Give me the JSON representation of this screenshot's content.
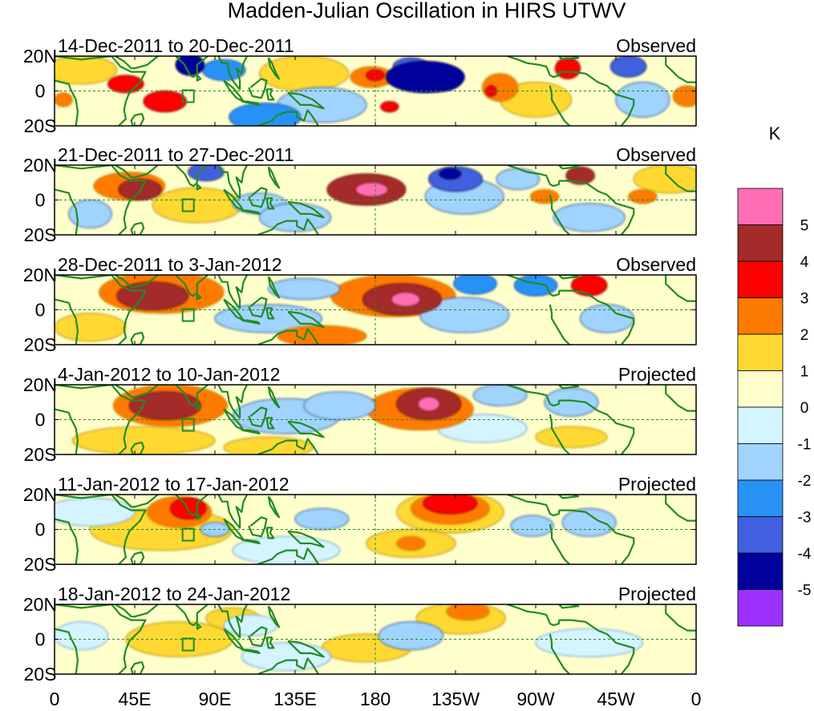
{
  "chart_data": {
    "type": "heatmap",
    "title": "Madden-Julian Oscillation in HIRS UTWV",
    "colorbar": {
      "unit": "K",
      "tick_labels": [
        "5",
        "4",
        "3",
        "2",
        "1",
        "0",
        "-1",
        "-2",
        "-3",
        "-4",
        "-5"
      ],
      "colors": [
        "#ff6eb4",
        "#a52a2a",
        "#ff0000",
        "#ff7a00",
        "#ffd933",
        "#ffffcc",
        "#d4f4ff",
        "#a0d4ff",
        "#2892f5",
        "#4060e0",
        "#00009b",
        "#9b30ff"
      ]
    },
    "x_ticks": [
      "0",
      "45E",
      "90E",
      "135E",
      "180",
      "135W",
      "90W",
      "45W",
      "0"
    ],
    "y_ticks": [
      "20N",
      "0",
      "20S"
    ],
    "panels": [
      {
        "period": "14-Dec-2011 to 20-Dec-2011",
        "kind": "Observed",
        "blobs": [
          {
            "lon": 208,
            "lat": 8,
            "value": -5,
            "rlon": 22,
            "rlat": 9
          },
          {
            "lon": 218,
            "lat": 6,
            "value": -4,
            "rlon": 10,
            "rlat": 6
          },
          {
            "lon": 200,
            "lat": 14,
            "value": -4,
            "rlon": 10,
            "rlat": 5
          },
          {
            "lon": 178,
            "lat": 8,
            "value": 2,
            "rlon": 12,
            "rlat": 6
          },
          {
            "lon": 180,
            "lat": 9,
            "value": 3,
            "rlon": 5,
            "rlat": 3
          },
          {
            "lon": 250,
            "lat": 2,
            "value": 2,
            "rlon": 10,
            "rlat": 8
          },
          {
            "lon": 245,
            "lat": 0,
            "value": 3,
            "rlon": 3,
            "rlat": 3
          },
          {
            "lon": 288,
            "lat": 13,
            "value": 3,
            "rlon": 7,
            "rlat": 6
          },
          {
            "lon": 322,
            "lat": 14,
            "value": -4,
            "rlon": 10,
            "rlat": 6
          },
          {
            "lon": 76,
            "lat": 15,
            "value": -5,
            "rlon": 8,
            "rlat": 6
          },
          {
            "lon": 95,
            "lat": 12,
            "value": -3,
            "rlon": 12,
            "rlat": 6
          },
          {
            "lon": 40,
            "lat": 4,
            "value": 3,
            "rlon": 10,
            "rlat": 5
          },
          {
            "lon": 62,
            "lat": -6,
            "value": 3,
            "rlon": 12,
            "rlat": 6
          },
          {
            "lon": 118,
            "lat": -15,
            "value": -3,
            "rlon": 20,
            "rlat": 8
          },
          {
            "lon": 150,
            "lat": -8,
            "value": -2,
            "rlon": 25,
            "rlat": 10
          },
          {
            "lon": 188,
            "lat": -9,
            "value": 3,
            "rlon": 5,
            "rlat": 3
          },
          {
            "lon": 270,
            "lat": -5,
            "value": 1,
            "rlon": 20,
            "rlat": 10
          },
          {
            "lon": 330,
            "lat": -5,
            "value": -2,
            "rlon": 15,
            "rlat": 10
          },
          {
            "lon": 355,
            "lat": -3,
            "value": 2,
            "rlon": 8,
            "rlat": 6
          },
          {
            "lon": 15,
            "lat": 12,
            "value": 1,
            "rlon": 20,
            "rlat": 8
          },
          {
            "lon": 140,
            "lat": 10,
            "value": 1,
            "rlon": 25,
            "rlat": 10
          },
          {
            "lon": 5,
            "lat": -5,
            "value": 2,
            "rlon": 5,
            "rlat": 4
          }
        ]
      },
      {
        "period": "21-Dec-2011 to 27-Dec-2011",
        "kind": "Observed",
        "blobs": [
          {
            "lon": 175,
            "lat": 6,
            "value": 4,
            "rlon": 22,
            "rlat": 9
          },
          {
            "lon": 178,
            "lat": 6,
            "value": 5,
            "rlon": 9,
            "rlat": 4
          },
          {
            "lon": 225,
            "lat": 12,
            "value": -4,
            "rlon": 15,
            "rlat": 7
          },
          {
            "lon": 222,
            "lat": 15,
            "value": -5,
            "rlon": 6,
            "rlat": 3
          },
          {
            "lon": 230,
            "lat": 2,
            "value": -2,
            "rlon": 22,
            "rlat": 10
          },
          {
            "lon": 48,
            "lat": 6,
            "value": 4,
            "rlon": 12,
            "rlat": 6
          },
          {
            "lon": 42,
            "lat": 8,
            "value": 2,
            "rlon": 20,
            "rlat": 8
          },
          {
            "lon": 85,
            "lat": 16,
            "value": -4,
            "rlon": 10,
            "rlat": 5
          },
          {
            "lon": 295,
            "lat": 14,
            "value": 4,
            "rlon": 8,
            "rlat": 5
          },
          {
            "lon": 275,
            "lat": 2,
            "value": 2,
            "rlon": 8,
            "rlat": 4
          },
          {
            "lon": 330,
            "lat": 2,
            "value": 2,
            "rlon": 8,
            "rlat": 4
          },
          {
            "lon": 115,
            "lat": -2,
            "value": -2,
            "rlon": 15,
            "rlat": 6
          },
          {
            "lon": 135,
            "lat": -10,
            "value": -2,
            "rlon": 20,
            "rlat": 8
          },
          {
            "lon": 80,
            "lat": -3,
            "value": 1,
            "rlon": 25,
            "rlat": 10
          },
          {
            "lon": 20,
            "lat": -8,
            "value": -2,
            "rlon": 12,
            "rlat": 8
          },
          {
            "lon": 300,
            "lat": -10,
            "value": -2,
            "rlon": 20,
            "rlat": 8
          },
          {
            "lon": 260,
            "lat": 12,
            "value": -2,
            "rlon": 12,
            "rlat": 6
          },
          {
            "lon": 345,
            "lat": 12,
            "value": 1,
            "rlon": 20,
            "rlat": 8
          }
        ]
      },
      {
        "period": "28-Dec-2011 to 3-Jan-2012",
        "kind": "Observed",
        "blobs": [
          {
            "lon": 195,
            "lat": 6,
            "value": 4,
            "rlon": 22,
            "rlat": 9
          },
          {
            "lon": 197,
            "lat": 6,
            "value": 5,
            "rlon": 8,
            "rlat": 4
          },
          {
            "lon": 190,
            "lat": 8,
            "value": 2,
            "rlon": 35,
            "rlat": 12
          },
          {
            "lon": 55,
            "lat": 8,
            "value": 4,
            "rlon": 20,
            "rlat": 8
          },
          {
            "lon": 60,
            "lat": 10,
            "value": 2,
            "rlon": 35,
            "rlat": 12
          },
          {
            "lon": 300,
            "lat": 14,
            "value": 3,
            "rlon": 10,
            "rlat": 6
          },
          {
            "lon": 236,
            "lat": 15,
            "value": -3,
            "rlon": 12,
            "rlat": 6
          },
          {
            "lon": 270,
            "lat": 14,
            "value": -3,
            "rlon": 12,
            "rlat": 6
          },
          {
            "lon": 230,
            "lat": -3,
            "value": -2,
            "rlon": 25,
            "rlat": 10
          },
          {
            "lon": 120,
            "lat": -5,
            "value": -2,
            "rlon": 30,
            "rlat": 8
          },
          {
            "lon": 150,
            "lat": -15,
            "value": 2,
            "rlon": 25,
            "rlat": 6
          },
          {
            "lon": 140,
            "lat": 12,
            "value": -2,
            "rlon": 20,
            "rlat": 6
          },
          {
            "lon": 20,
            "lat": -10,
            "value": 1,
            "rlon": 20,
            "rlat": 8
          },
          {
            "lon": 310,
            "lat": -5,
            "value": -2,
            "rlon": 15,
            "rlat": 8
          }
        ]
      },
      {
        "period": "4-Jan-2012 to 10-Jan-2012",
        "kind": "Projected",
        "blobs": [
          {
            "lon": 210,
            "lat": 9,
            "value": 4,
            "rlon": 18,
            "rlat": 9
          },
          {
            "lon": 210,
            "lat": 9,
            "value": 5,
            "rlon": 6,
            "rlat": 4
          },
          {
            "lon": 205,
            "lat": 6,
            "value": 2,
            "rlon": 30,
            "rlat": 12
          },
          {
            "lon": 62,
            "lat": 8,
            "value": 4,
            "rlon": 20,
            "rlat": 8
          },
          {
            "lon": 65,
            "lat": 8,
            "value": 2,
            "rlon": 32,
            "rlat": 12
          },
          {
            "lon": 50,
            "lat": -12,
            "value": 1,
            "rlon": 40,
            "rlat": 8
          },
          {
            "lon": 130,
            "lat": 2,
            "value": -2,
            "rlon": 30,
            "rlat": 10
          },
          {
            "lon": 160,
            "lat": 8,
            "value": -2,
            "rlon": 20,
            "rlat": 8
          },
          {
            "lon": 250,
            "lat": 14,
            "value": -2,
            "rlon": 15,
            "rlat": 6
          },
          {
            "lon": 290,
            "lat": 10,
            "value": -2,
            "rlon": 15,
            "rlat": 8
          },
          {
            "lon": 240,
            "lat": -5,
            "value": -1,
            "rlon": 25,
            "rlat": 8
          },
          {
            "lon": 120,
            "lat": -16,
            "value": 1,
            "rlon": 25,
            "rlat": 6
          },
          {
            "lon": 290,
            "lat": -10,
            "value": 1,
            "rlon": 20,
            "rlat": 6
          }
        ]
      },
      {
        "period": "11-Jan-2012 to 17-Jan-2012",
        "kind": "Projected",
        "blobs": [
          {
            "lon": 222,
            "lat": 15,
            "value": 3,
            "rlon": 15,
            "rlat": 6
          },
          {
            "lon": 222,
            "lat": 12,
            "value": 2,
            "rlon": 22,
            "rlat": 9
          },
          {
            "lon": 222,
            "lat": 10,
            "value": 1,
            "rlon": 30,
            "rlat": 12
          },
          {
            "lon": 75,
            "lat": 12,
            "value": 3,
            "rlon": 10,
            "rlat": 6
          },
          {
            "lon": 70,
            "lat": 10,
            "value": 2,
            "rlon": 18,
            "rlat": 9
          },
          {
            "lon": 60,
            "lat": 0,
            "value": 1,
            "rlon": 40,
            "rlat": 12
          },
          {
            "lon": 200,
            "lat": -8,
            "value": 2,
            "rlon": 8,
            "rlat": 4
          },
          {
            "lon": 200,
            "lat": -8,
            "value": 1,
            "rlon": 25,
            "rlat": 8
          },
          {
            "lon": 90,
            "lat": 0,
            "value": -2,
            "rlon": 8,
            "rlat": 4
          },
          {
            "lon": 150,
            "lat": 6,
            "value": -2,
            "rlon": 15,
            "rlat": 6
          },
          {
            "lon": 268,
            "lat": 2,
            "value": -2,
            "rlon": 12,
            "rlat": 6
          },
          {
            "lon": 300,
            "lat": 4,
            "value": -2,
            "rlon": 15,
            "rlat": 8
          },
          {
            "lon": 20,
            "lat": 10,
            "value": -1,
            "rlon": 25,
            "rlat": 8
          },
          {
            "lon": 130,
            "lat": -12,
            "value": -1,
            "rlon": 30,
            "rlat": 8
          }
        ]
      },
      {
        "period": "18-Jan-2012 to 24-Jan-2012",
        "kind": "Projected",
        "blobs": [
          {
            "lon": 232,
            "lat": 16,
            "value": 2,
            "rlon": 12,
            "rlat": 5
          },
          {
            "lon": 228,
            "lat": 12,
            "value": 1,
            "rlon": 25,
            "rlat": 9
          },
          {
            "lon": 175,
            "lat": -5,
            "value": 1,
            "rlon": 25,
            "rlat": 8
          },
          {
            "lon": 70,
            "lat": 0,
            "value": 1,
            "rlon": 30,
            "rlat": 10
          },
          {
            "lon": 100,
            "lat": 12,
            "value": 1,
            "rlon": 15,
            "rlat": 6
          },
          {
            "lon": 200,
            "lat": 2,
            "value": -2,
            "rlon": 18,
            "rlat": 8
          },
          {
            "lon": 300,
            "lat": -2,
            "value": -1,
            "rlon": 30,
            "rlat": 8
          },
          {
            "lon": 15,
            "lat": 2,
            "value": -1,
            "rlon": 15,
            "rlat": 8
          },
          {
            "lon": 130,
            "lat": -10,
            "value": -1,
            "rlon": 25,
            "rlat": 8
          },
          {
            "lon": 110,
            "lat": 8,
            "value": -1,
            "rlon": 15,
            "rlat": 6
          }
        ]
      }
    ]
  }
}
